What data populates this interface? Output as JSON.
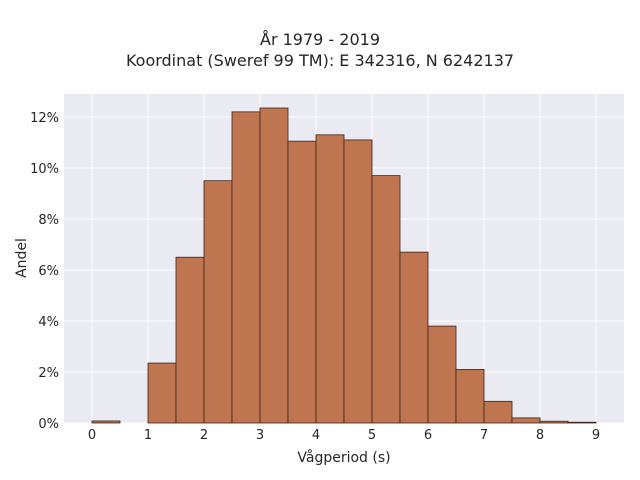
{
  "chart_data": {
    "type": "bar",
    "title": "År 1979 - 2019",
    "subtitle": "Koordinat (Sweref 99 TM): E 342316, N 6242137",
    "xlabel": "Vågperiod (s)",
    "ylabel": "Andel",
    "xlim": [
      -0.5,
      9.5
    ],
    "ylim": [
      0,
      12.9
    ],
    "grid": true,
    "bin_width": 0.5,
    "bins": [
      {
        "x": 0.0,
        "value": 0.08
      },
      {
        "x": 1.0,
        "value": 2.35
      },
      {
        "x": 1.5,
        "value": 6.5
      },
      {
        "x": 2.0,
        "value": 9.5
      },
      {
        "x": 2.5,
        "value": 12.2
      },
      {
        "x": 3.0,
        "value": 12.35
      },
      {
        "x": 3.5,
        "value": 11.05
      },
      {
        "x": 4.0,
        "value": 11.3
      },
      {
        "x": 4.5,
        "value": 11.1
      },
      {
        "x": 5.0,
        "value": 9.7
      },
      {
        "x": 5.5,
        "value": 6.7
      },
      {
        "x": 6.0,
        "value": 3.8
      },
      {
        "x": 6.5,
        "value": 2.1
      },
      {
        "x": 7.0,
        "value": 0.85
      },
      {
        "x": 7.5,
        "value": 0.2
      },
      {
        "x": 8.0,
        "value": 0.07
      },
      {
        "x": 8.5,
        "value": 0.03
      }
    ],
    "xticks": [
      0,
      1,
      2,
      3,
      4,
      5,
      6,
      7,
      8,
      9
    ],
    "yticks": [
      0,
      2,
      4,
      6,
      8,
      10,
      12
    ],
    "ytick_labels": [
      "0%",
      "2%",
      "4%",
      "6%",
      "8%",
      "10%",
      "12%"
    ],
    "colors": {
      "bar_fill": "#bf7650",
      "bar_edge": "#3b2418",
      "plot_bg": "#eaeaf2",
      "grid": "#ffffff"
    }
  }
}
